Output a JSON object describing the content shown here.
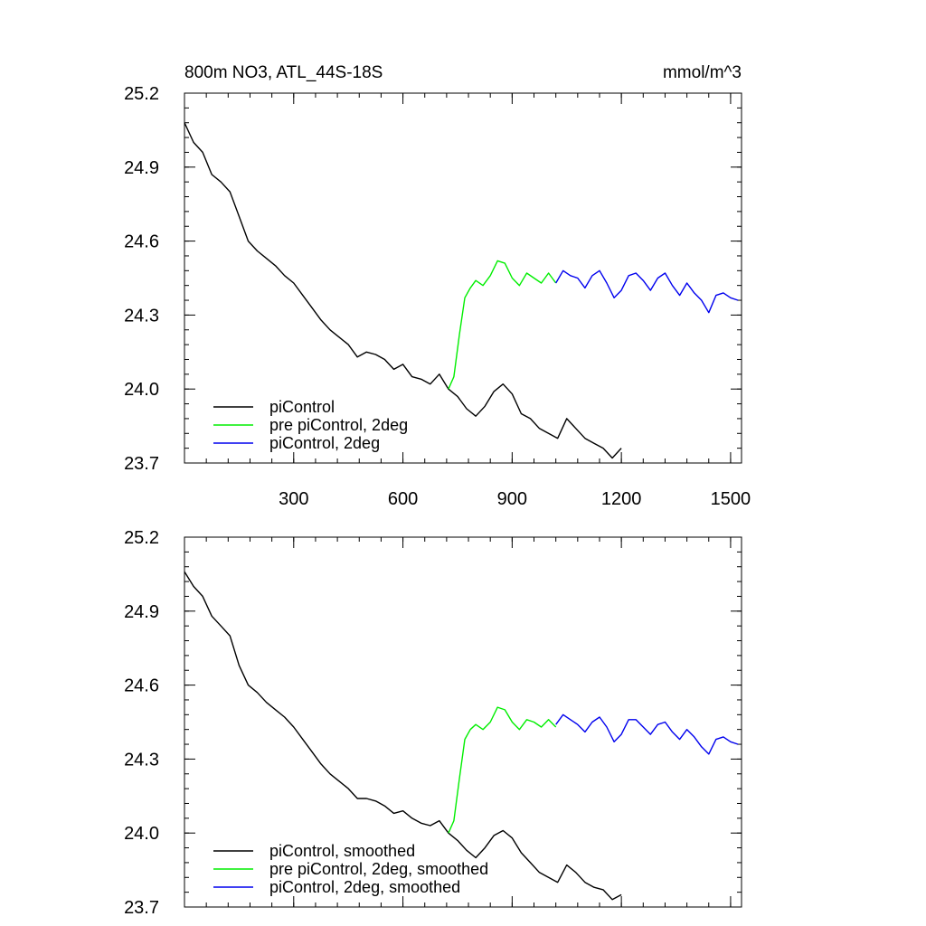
{
  "chart_data": [
    {
      "type": "line",
      "title_left": "800m NO3, ATL_44S-18S",
      "title_right": "mmol/m^3",
      "xlim": [
        0,
        1530
      ],
      "ylim": [
        23.7,
        25.2
      ],
      "xticks": [
        300,
        600,
        900,
        1200,
        1500
      ],
      "yticks": [
        23.7,
        24.0,
        24.3,
        24.6,
        24.9,
        25.2
      ],
      "ytick_labels": [
        "23.7",
        "24.0",
        "24.3",
        "24.6",
        "24.9",
        "25.2"
      ],
      "xtick_labels": [
        "300",
        "600",
        "900",
        "1200",
        "1500"
      ],
      "grid": false,
      "legend_position": "bottom-left",
      "series": [
        {
          "name": "piControl",
          "color": "#000000",
          "x": [
            0,
            25,
            50,
            75,
            100,
            125,
            150,
            175,
            200,
            225,
            250,
            275,
            300,
            325,
            350,
            375,
            400,
            425,
            450,
            475,
            500,
            525,
            550,
            575,
            600,
            625,
            650,
            675,
            700,
            725,
            750,
            775,
            800,
            825,
            850,
            875,
            900,
            925,
            950,
            975,
            1000,
            1025,
            1050,
            1075,
            1100,
            1125,
            1150,
            1175,
            1200
          ],
          "values": [
            25.08,
            25.0,
            24.96,
            24.87,
            24.84,
            24.8,
            24.7,
            24.6,
            24.56,
            24.53,
            24.5,
            24.46,
            24.43,
            24.38,
            24.33,
            24.28,
            24.24,
            24.21,
            24.18,
            24.13,
            24.15,
            24.14,
            24.12,
            24.08,
            24.1,
            24.05,
            24.04,
            24.02,
            24.06,
            24.0,
            23.97,
            23.92,
            23.89,
            23.93,
            23.99,
            24.02,
            23.98,
            23.9,
            23.88,
            23.84,
            23.82,
            23.8,
            23.88,
            23.84,
            23.8,
            23.78,
            23.76,
            23.72,
            23.76
          ]
        },
        {
          "name": "pre piControl, 2deg",
          "color": "#00ee00",
          "x": [
            725,
            740,
            755,
            770,
            785,
            800,
            820,
            840,
            860,
            880,
            900,
            920,
            940,
            960,
            980,
            1000,
            1020
          ],
          "values": [
            24.0,
            24.05,
            24.22,
            24.37,
            24.41,
            24.44,
            24.42,
            24.46,
            24.52,
            24.51,
            24.45,
            24.42,
            24.47,
            24.45,
            24.43,
            24.47,
            24.43
          ]
        },
        {
          "name": "piControl, 2deg",
          "color": "#0000ee",
          "x": [
            1020,
            1040,
            1060,
            1080,
            1100,
            1120,
            1140,
            1160,
            1180,
            1200,
            1220,
            1240,
            1260,
            1280,
            1300,
            1320,
            1340,
            1360,
            1380,
            1400,
            1420,
            1440,
            1460,
            1480,
            1500,
            1520
          ],
          "values": [
            24.43,
            24.48,
            24.46,
            24.45,
            24.41,
            24.46,
            24.48,
            24.43,
            24.37,
            24.4,
            24.46,
            24.47,
            24.44,
            24.4,
            24.45,
            24.47,
            24.42,
            24.38,
            24.43,
            24.39,
            24.36,
            24.31,
            24.38,
            24.39,
            24.37,
            24.36
          ]
        }
      ]
    },
    {
      "type": "line",
      "xlim": [
        0,
        1530
      ],
      "ylim": [
        23.7,
        25.2
      ],
      "xticks": [
        300,
        600,
        900,
        1200,
        1500
      ],
      "yticks": [
        23.7,
        24.0,
        24.3,
        24.6,
        24.9,
        25.2
      ],
      "ytick_labels": [
        "23.7",
        "24.0",
        "24.3",
        "24.6",
        "24.9",
        "25.2"
      ],
      "grid": false,
      "legend_position": "bottom-left",
      "series": [
        {
          "name": "piControl, smoothed",
          "color": "#000000",
          "x": [
            0,
            25,
            50,
            75,
            100,
            125,
            150,
            175,
            200,
            225,
            250,
            275,
            300,
            325,
            350,
            375,
            400,
            425,
            450,
            475,
            500,
            525,
            550,
            575,
            600,
            625,
            650,
            675,
            700,
            725,
            750,
            775,
            800,
            825,
            850,
            875,
            900,
            925,
            950,
            975,
            1000,
            1025,
            1050,
            1075,
            1100,
            1125,
            1150,
            1175,
            1200
          ],
          "values": [
            25.06,
            25.0,
            24.96,
            24.88,
            24.84,
            24.8,
            24.68,
            24.6,
            24.57,
            24.53,
            24.5,
            24.47,
            24.43,
            24.38,
            24.33,
            24.28,
            24.24,
            24.21,
            24.18,
            24.14,
            24.14,
            24.13,
            24.11,
            24.08,
            24.09,
            24.06,
            24.04,
            24.03,
            24.05,
            24.0,
            23.97,
            23.93,
            23.9,
            23.94,
            23.99,
            24.01,
            23.98,
            23.92,
            23.88,
            23.84,
            23.82,
            23.8,
            23.87,
            23.84,
            23.8,
            23.78,
            23.77,
            23.73,
            23.75
          ]
        },
        {
          "name": "pre piControl, 2deg, smoothed",
          "color": "#00ee00",
          "x": [
            725,
            740,
            755,
            770,
            785,
            800,
            820,
            840,
            860,
            880,
            900,
            920,
            940,
            960,
            980,
            1000,
            1020
          ],
          "values": [
            24.0,
            24.05,
            24.22,
            24.38,
            24.42,
            24.44,
            24.42,
            24.45,
            24.51,
            24.5,
            24.45,
            24.42,
            24.46,
            24.45,
            24.43,
            24.46,
            24.43
          ]
        },
        {
          "name": "piControl, 2deg, smoothed",
          "color": "#0000ee",
          "x": [
            1020,
            1040,
            1060,
            1080,
            1100,
            1120,
            1140,
            1160,
            1180,
            1200,
            1220,
            1240,
            1260,
            1280,
            1300,
            1320,
            1340,
            1360,
            1380,
            1400,
            1420,
            1440,
            1460,
            1480,
            1500,
            1520
          ],
          "values": [
            24.44,
            24.48,
            24.46,
            24.44,
            24.41,
            24.45,
            24.47,
            24.43,
            24.37,
            24.4,
            24.46,
            24.46,
            24.43,
            24.4,
            24.44,
            24.45,
            24.41,
            24.38,
            24.42,
            24.39,
            24.35,
            24.32,
            24.38,
            24.39,
            24.37,
            24.36
          ]
        }
      ]
    }
  ]
}
